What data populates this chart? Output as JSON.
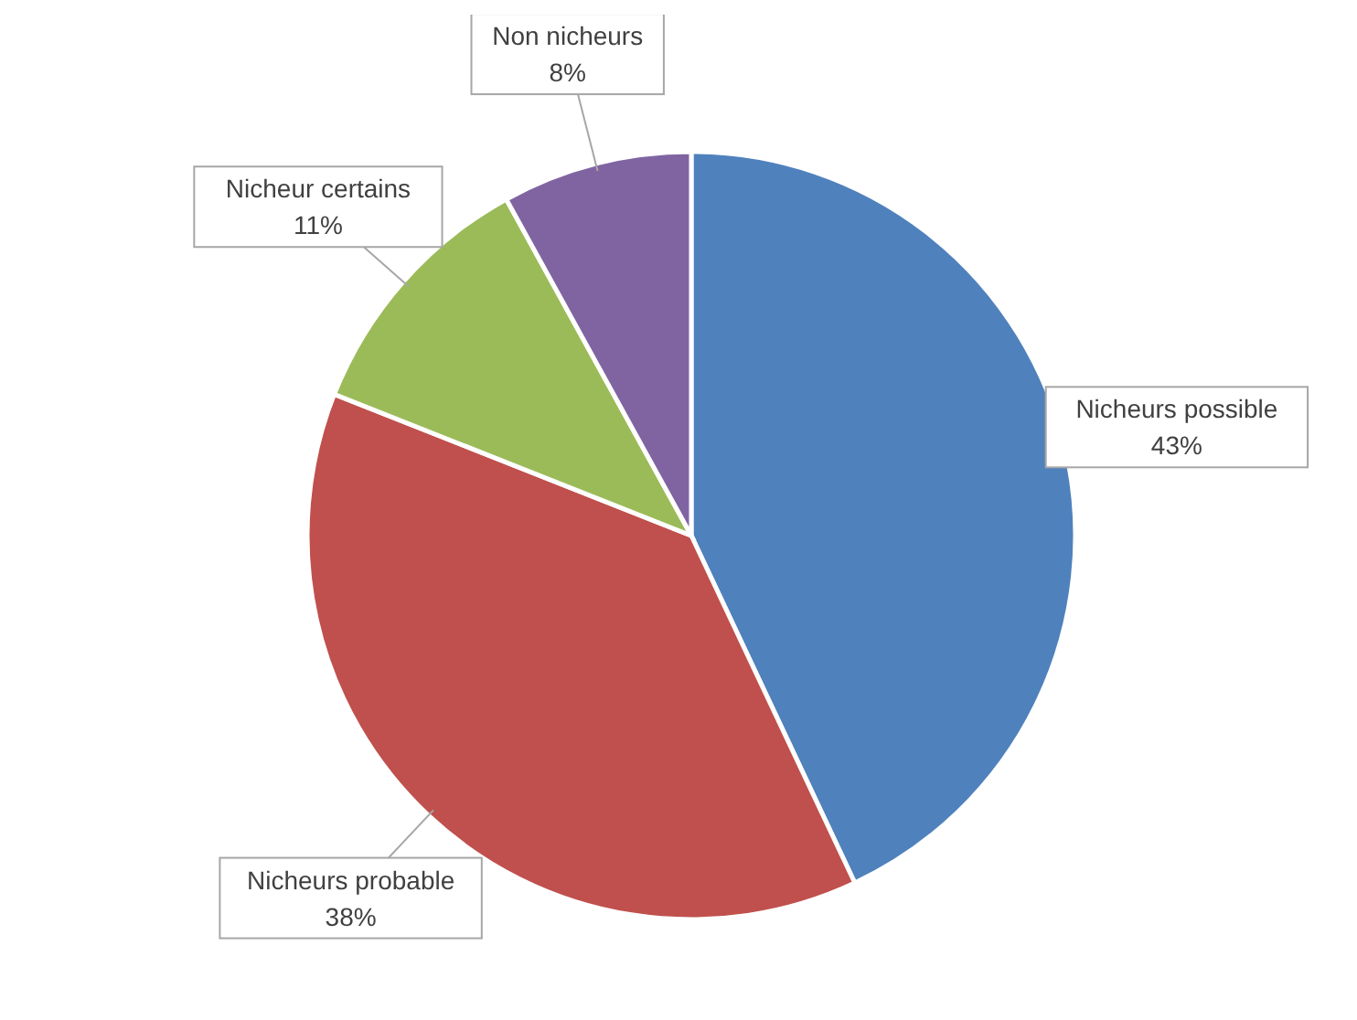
{
  "chart_data": {
    "type": "pie",
    "categories": [
      "Nicheurs possible",
      "Nicheurs probable",
      "Nicheur certains",
      "Non nicheurs"
    ],
    "values": [
      43,
      38,
      11,
      8
    ],
    "colors": [
      "#4f81bd",
      "#c0504d",
      "#9bbb59",
      "#8064a2"
    ],
    "value_labels": [
      "43%",
      "38%",
      "11%",
      "8%"
    ]
  }
}
